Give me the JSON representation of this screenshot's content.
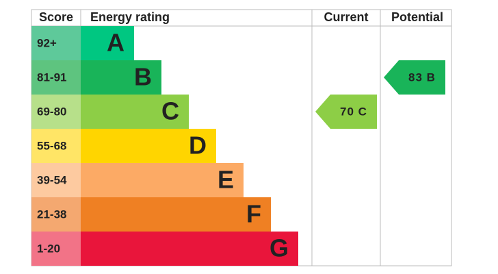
{
  "header": {
    "score": "Score",
    "rating": "Energy rating",
    "current": "Current",
    "potential": "Potential"
  },
  "bands": [
    {
      "score": "92+",
      "letter": "A",
      "color": "#00c781",
      "score_color": "#5ec99a"
    },
    {
      "score": "81-91",
      "letter": "B",
      "color": "#19b459",
      "score_color": "#5ec47f"
    },
    {
      "score": "69-80",
      "letter": "C",
      "color": "#8dce46",
      "score_color": "#b7e08a"
    },
    {
      "score": "55-68",
      "letter": "D",
      "color": "#ffd500",
      "score_color": "#ffe566"
    },
    {
      "score": "39-54",
      "letter": "E",
      "color": "#fcaa65",
      "score_color": "#fdcaa0"
    },
    {
      "score": "21-38",
      "letter": "F",
      "color": "#ef8023",
      "score_color": "#f4a870"
    },
    {
      "score": "1-20",
      "letter": "G",
      "color": "#e9153b",
      "score_color": "#f27387"
    }
  ],
  "current": {
    "label": "70 C",
    "letter": "C"
  },
  "potential": {
    "label": "83 B",
    "letter": "B"
  }
}
